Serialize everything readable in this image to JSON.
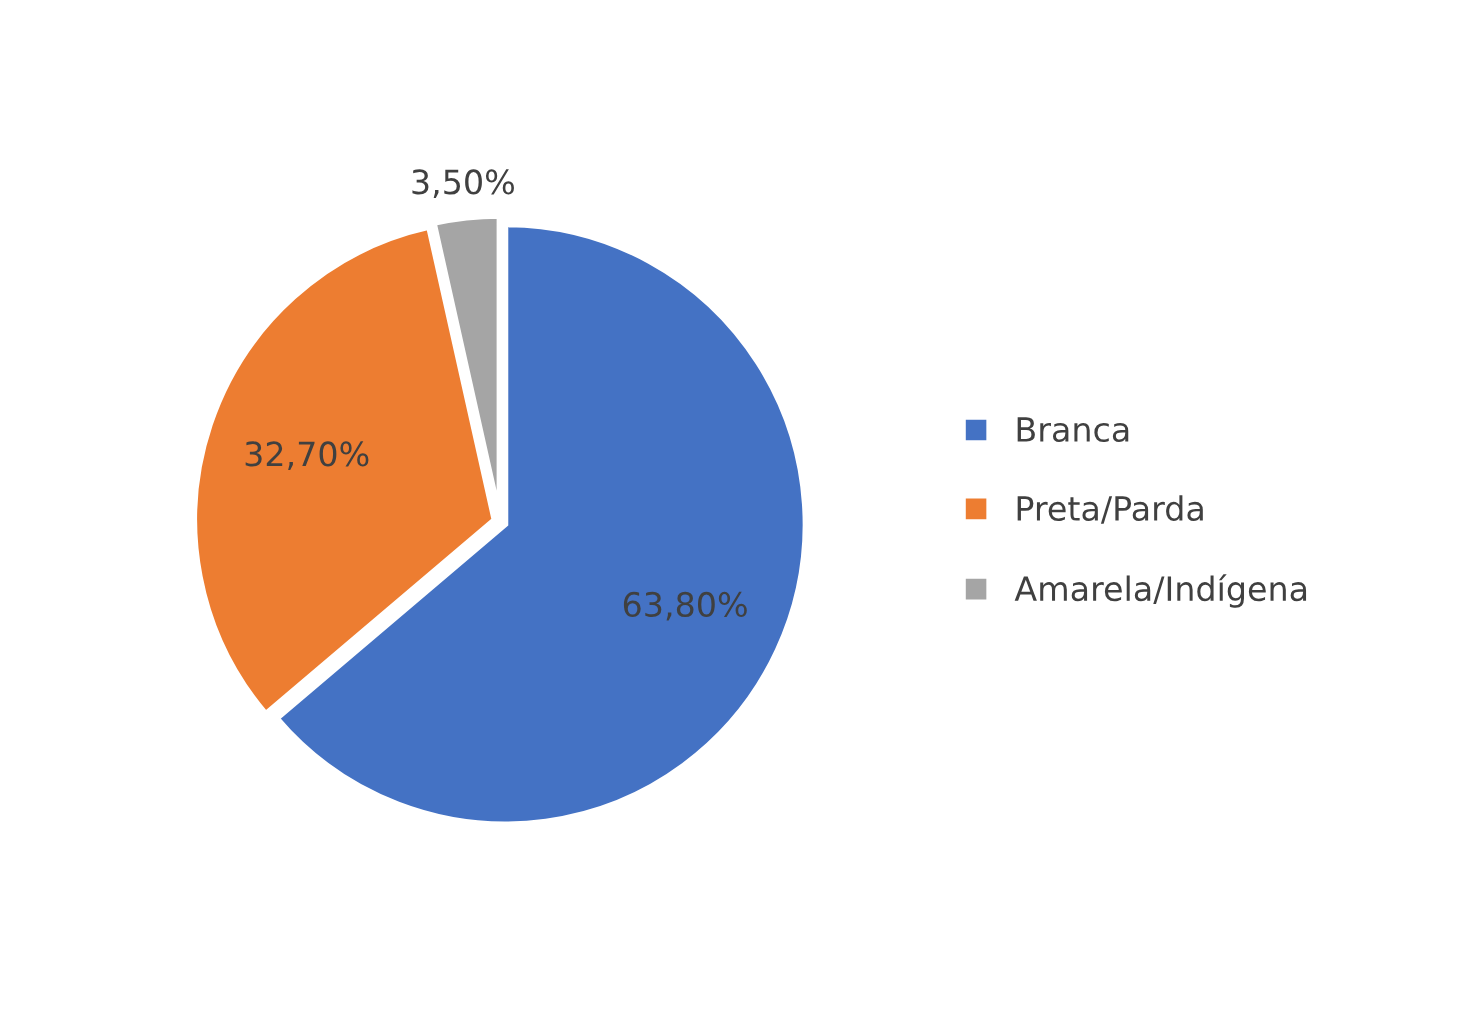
{
  "chart_data": {
    "type": "pie",
    "categories": [
      "Branca",
      "Preta/Parda",
      "Amarela/Indígena"
    ],
    "values": [
      63.8,
      32.7,
      3.5
    ],
    "colors": [
      "#4472c4",
      "#ed7d31",
      "#a5a5a5"
    ],
    "value_labels": [
      "63,80%",
      "32,70%",
      "3,50%"
    ],
    "legend": "right"
  }
}
